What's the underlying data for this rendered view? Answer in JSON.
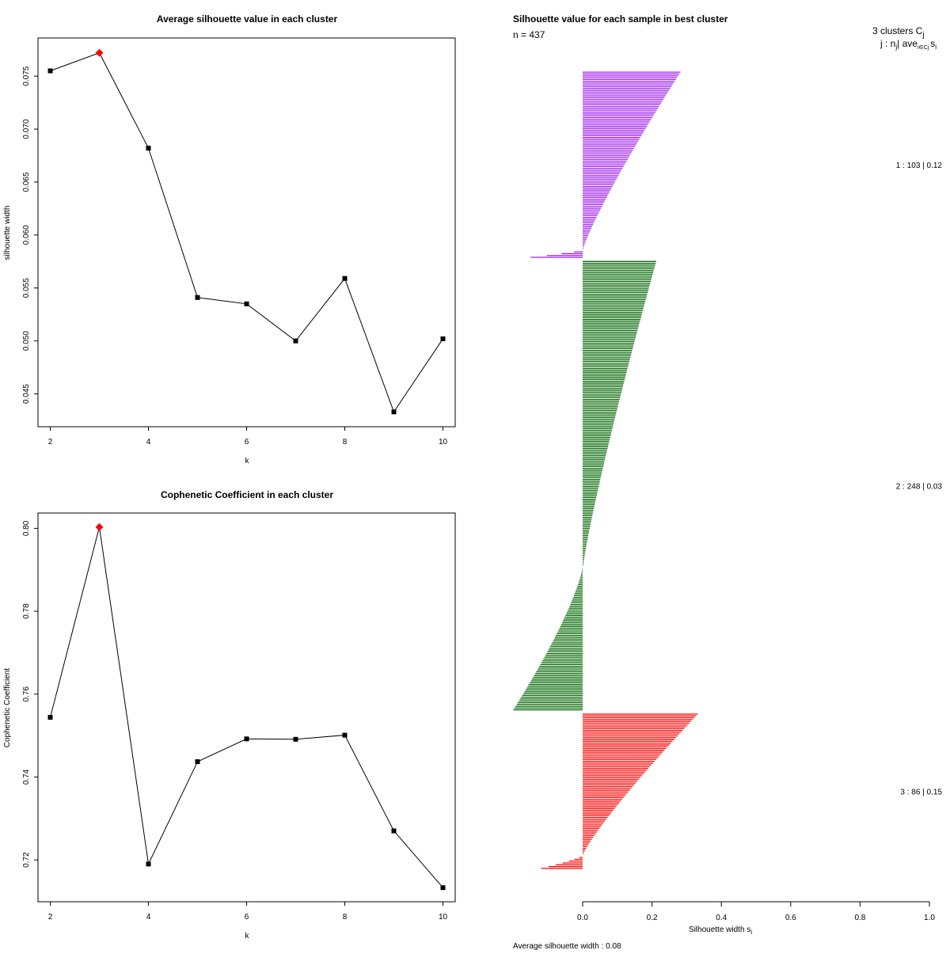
{
  "chart_data": [
    {
      "type": "line",
      "title": "Average silhouette value in each cluster",
      "xlabel": "k",
      "ylabel": "silhouette width",
      "x": [
        2,
        3,
        4,
        5,
        6,
        7,
        8,
        9,
        10
      ],
      "values": [
        0.0755,
        0.0772,
        0.0682,
        0.0541,
        0.0535,
        0.05,
        0.0559,
        0.0433,
        0.0502
      ],
      "highlight_index": 1,
      "highlight_color": "#ff0000",
      "xlim": [
        1.75,
        10.25
      ],
      "ylim": [
        0.0419,
        0.0786
      ],
      "xticks": [
        "2",
        "4",
        "6",
        "8",
        "10"
      ],
      "yticks": [
        "0.045",
        "0.050",
        "0.055",
        "0.060",
        "0.065",
        "0.070",
        "0.075"
      ]
    },
    {
      "type": "line",
      "title": "Cophenetic Coefficient in each cluster",
      "xlabel": "k",
      "ylabel": "Cophenetic Coefficient",
      "x": [
        2,
        3,
        4,
        5,
        6,
        7,
        8,
        9,
        10
      ],
      "values": [
        0.7544,
        0.8003,
        0.719,
        0.7437,
        0.7492,
        0.7491,
        0.7501,
        0.727,
        0.7133
      ],
      "highlight_index": 1,
      "highlight_color": "#ff0000",
      "xlim": [
        1.75,
        10.25
      ],
      "ylim": [
        0.7099,
        0.8037
      ],
      "xticks": [
        "2",
        "4",
        "6",
        "8",
        "10"
      ],
      "yticks": [
        "0.72",
        "0.74",
        "0.76",
        "0.78",
        "0.80"
      ]
    },
    {
      "type": "bar",
      "orientation": "horizontal",
      "title": "Silhouette value for each sample in best cluster",
      "n_label": "n = 437",
      "xlabel": "Silhouette width s",
      "xlabel_sub": "i",
      "xlim": [
        0,
        1
      ],
      "xticks": [
        "0.0",
        "0.2",
        "0.4",
        "0.6",
        "0.8",
        "1.0"
      ],
      "legend_title": "3 clusters C",
      "legend_title_sub": "j",
      "legend_header": "j : n",
      "legend_header_sub": "j",
      "legend_header_rest": "| ave",
      "legend_header_sub2": "i∈Cj",
      "legend_header_end": "s",
      "legend_header_sub3": "i",
      "clusters": [
        {
          "label": "1 :   103  |  0.12",
          "n": 103,
          "avg": 0.12,
          "color": "#a020f0",
          "max": 0.28,
          "min": -0.15,
          "neg_count": 5
        },
        {
          "label": "2 :   248  |  0.03",
          "n": 248,
          "avg": 0.03,
          "color": "#006400",
          "max": 0.21,
          "min": -0.2,
          "neg_count": 80
        },
        {
          "label": "3 :   86  |  0.15",
          "n": 86,
          "avg": 0.15,
          "color": "#ff0000",
          "max": 0.33,
          "min": -0.12,
          "neg_count": 8
        }
      ],
      "footer": "Average silhouette width :  0.08"
    }
  ]
}
